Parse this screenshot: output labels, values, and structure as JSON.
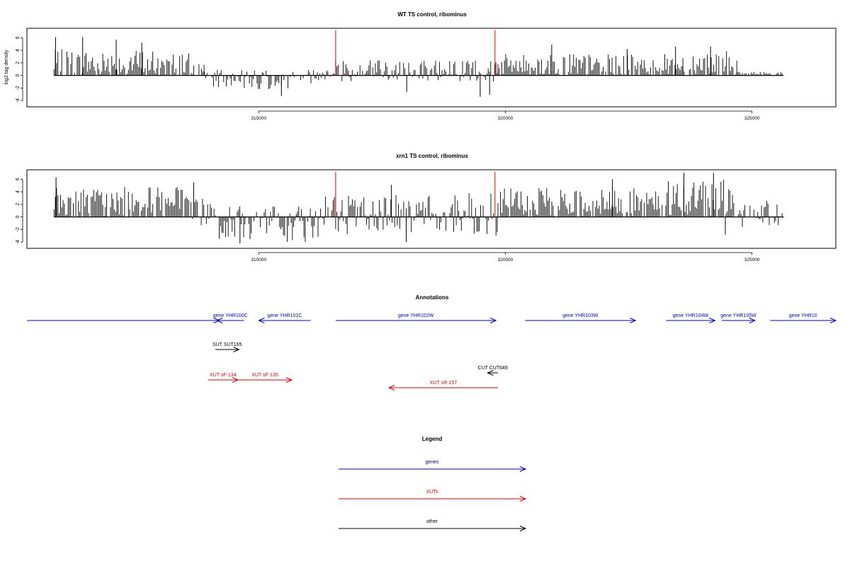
{
  "colors": {
    "genes": "#0000cc",
    "xuts": "#e00000",
    "other": "#000000",
    "bars": "#000000",
    "marker": "#e00000"
  },
  "chart_data": [
    {
      "type": "bar",
      "title": "WT TS control, ribominus",
      "ylabel": "log2 tag density",
      "xlim": [
        310300,
        326700
      ],
      "ylim": [
        -5,
        7.5
      ],
      "yticks": [
        "6",
        "4",
        "2",
        "0",
        "-2",
        "-4"
      ],
      "xticks": [
        "315000",
        "320000",
        "325000"
      ],
      "data_range": [
        310850,
        325640
      ],
      "marker_lines": [
        316560,
        319790
      ],
      "profile": [
        {
          "from": 310850,
          "to": 313900,
          "lo": 0,
          "hi": 4.2
        },
        {
          "from": 313900,
          "to": 316350,
          "lo": -2.2,
          "hi": 0.9
        },
        {
          "from": 316350,
          "to": 319850,
          "lo": -1.0,
          "hi": 2.6
        },
        {
          "from": 319850,
          "to": 323600,
          "lo": 0,
          "hi": 3.4
        },
        {
          "from": 323600,
          "to": 324700,
          "lo": 0,
          "hi": 4.0
        },
        {
          "from": 324700,
          "to": 325640,
          "lo": 0,
          "hi": 0.6
        }
      ],
      "peaks": [
        {
          "x": 310880,
          "y": 6.1
        },
        {
          "x": 311430,
          "y": 6.1
        },
        {
          "x": 312110,
          "y": 5.7
        },
        {
          "x": 312630,
          "y": 5.2
        },
        {
          "x": 315460,
          "y": -3.3
        },
        {
          "x": 318000,
          "y": -2.6
        },
        {
          "x": 319490,
          "y": -3.4
        },
        {
          "x": 319680,
          "y": -3.1
        },
        {
          "x": 320940,
          "y": 4.9
        },
        {
          "x": 322470,
          "y": 4.2
        },
        {
          "x": 323450,
          "y": 4.6
        },
        {
          "x": 324160,
          "y": 4.6
        }
      ]
    },
    {
      "type": "bar",
      "title": "xrn1 TS control, ribominus",
      "ylabel": "",
      "xlim": [
        310300,
        326700
      ],
      "ylim": [
        -5,
        7.5
      ],
      "yticks": [
        "6",
        "4",
        "2",
        "0",
        "-2",
        "-4"
      ],
      "xticks": [
        "315000",
        "320000",
        "325000"
      ],
      "data_range": [
        310850,
        325640
      ],
      "marker_lines": [
        316560,
        319790
      ],
      "profile": [
        {
          "from": 310850,
          "to": 313600,
          "lo": 0,
          "hi": 4.8
        },
        {
          "from": 313600,
          "to": 314200,
          "lo": -1.5,
          "hi": 3.0
        },
        {
          "from": 314200,
          "to": 316300,
          "lo": -4.0,
          "hi": 2.0
        },
        {
          "from": 316300,
          "to": 319850,
          "lo": -3.0,
          "hi": 3.8
        },
        {
          "from": 319850,
          "to": 323200,
          "lo": 0,
          "hi": 4.6
        },
        {
          "from": 323200,
          "to": 324700,
          "lo": 0,
          "hi": 6.2
        },
        {
          "from": 324700,
          "to": 325640,
          "lo": -1.6,
          "hi": 2.6
        }
      ],
      "peaks": [
        {
          "x": 310890,
          "y": 6.3
        },
        {
          "x": 313680,
          "y": 5.5
        },
        {
          "x": 314620,
          "y": -4.2
        },
        {
          "x": 317690,
          "y": 5.1
        },
        {
          "x": 317990,
          "y": -4.0
        },
        {
          "x": 322170,
          "y": 6.0
        },
        {
          "x": 323620,
          "y": 7.0
        },
        {
          "x": 324220,
          "y": 7.0
        },
        {
          "x": 324460,
          "y": -2.8
        }
      ]
    }
  ],
  "annotations": {
    "title": "Annotations",
    "features": [
      {
        "label": "",
        "kind": "gene",
        "start": 310300,
        "end": 314200,
        "strand": "+",
        "row": 0
      },
      {
        "label": "gene YHR100C",
        "kind": "gene",
        "start": 314150,
        "end": 314700,
        "strand": "-",
        "row": 0
      },
      {
        "label": "gene YHR101C",
        "kind": "gene",
        "start": 315000,
        "end": 316050,
        "strand": "-",
        "row": 0
      },
      {
        "label": "gene YHR102W",
        "kind": "gene",
        "start": 316560,
        "end": 319810,
        "strand": "+",
        "row": 0
      },
      {
        "label": "gene YHR103W",
        "kind": "gene",
        "start": 320400,
        "end": 322640,
        "strand": "+",
        "row": 0
      },
      {
        "label": "gene YHR104W",
        "kind": "gene",
        "start": 323260,
        "end": 324250,
        "strand": "+",
        "row": 0
      },
      {
        "label": "gene YHR105W",
        "kind": "gene",
        "start": 324390,
        "end": 325060,
        "strand": "+",
        "row": 0
      },
      {
        "label": "gene YHR10",
        "kind": "gene",
        "start": 325370,
        "end": 326700,
        "strand": "+",
        "row": 0
      },
      {
        "label": "SUT SUT165",
        "kind": "other",
        "start": 314120,
        "end": 314600,
        "strand": "+",
        "row": 1
      },
      {
        "label": "CUT CUT649",
        "kind": "other",
        "start": 319640,
        "end": 319850,
        "strand": "-",
        "row": 2
      },
      {
        "label": "XUT sF-134",
        "kind": "xut",
        "start": 313970,
        "end": 314580,
        "strand": "+",
        "row": 3
      },
      {
        "label": "XUT sF-135",
        "kind": "xut",
        "start": 314580,
        "end": 315670,
        "strand": "+",
        "row": 3
      },
      {
        "label": "XUT sR-157",
        "kind": "xut",
        "start": 317640,
        "end": 319850,
        "strand": "-",
        "row": 4
      }
    ]
  },
  "legend": {
    "title": "Legend",
    "items": [
      {
        "label": "genes",
        "kind": "gene"
      },
      {
        "label": "XUTs",
        "kind": "xut"
      },
      {
        "label": "other",
        "kind": "other"
      }
    ]
  }
}
